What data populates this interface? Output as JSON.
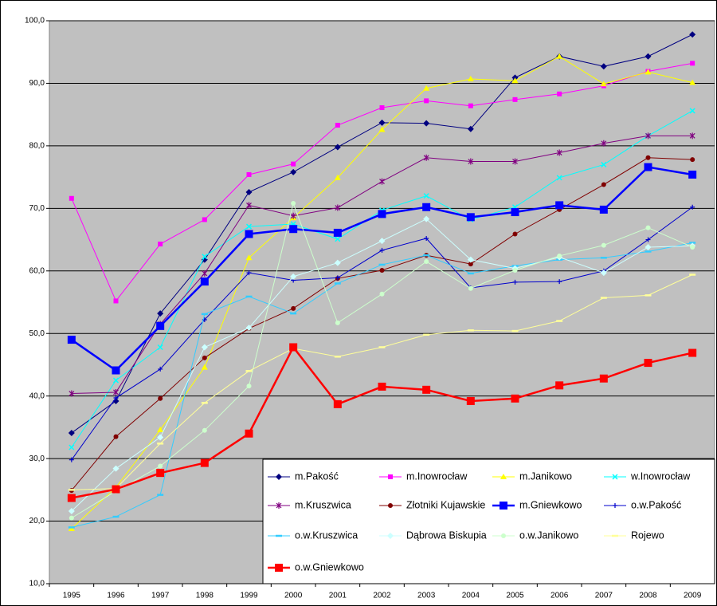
{
  "chart_data": {
    "type": "line",
    "categories": [
      "1995",
      "1996",
      "1997",
      "1998",
      "1999",
      "2000",
      "2001",
      "2002",
      "2003",
      "2004",
      "2005",
      "2006",
      "2007",
      "2008",
      "2009"
    ],
    "ylim": [
      10,
      100
    ],
    "yticks": [
      {
        "value": 10,
        "label": "10,0"
      },
      {
        "value": 20,
        "label": "20,0"
      },
      {
        "value": 30,
        "label": "30,0"
      },
      {
        "value": 40,
        "label": "40,0"
      },
      {
        "value": 50,
        "label": "50,0"
      },
      {
        "value": 60,
        "label": "60,0"
      },
      {
        "value": 70,
        "label": "70,0"
      },
      {
        "value": 80,
        "label": "80,0"
      },
      {
        "value": 90,
        "label": "90,0"
      },
      {
        "value": 100,
        "label": "100,0"
      }
    ],
    "grid": true,
    "legend": "bottom-right",
    "series": [
      {
        "name": "m.Pakość",
        "color": "#000080",
        "marker": "diamond",
        "line_width": 1,
        "values": [
          34.1,
          39.2,
          53.2,
          61.8,
          72.6,
          75.8,
          79.8,
          83.7,
          83.6,
          82.7,
          90.9,
          94.3,
          92.7,
          94.3,
          97.8
        ]
      },
      {
        "name": "m.Inowrocław",
        "color": "#FF00FF",
        "marker": "square",
        "line_width": 1,
        "values": [
          71.6,
          55.2,
          64.3,
          68.2,
          75.4,
          77.1,
          83.3,
          86.1,
          87.2,
          86.4,
          87.4,
          88.3,
          89.6,
          91.9,
          93.2
        ]
      },
      {
        "name": "m.Janikowo",
        "color": "#FFFF00",
        "marker": "triangle",
        "line_width": 1,
        "values": [
          18.8,
          25.4,
          34.6,
          44.6,
          62.1,
          68.5,
          74.9,
          82.6,
          89.2,
          90.7,
          90.4,
          94.3,
          89.9,
          91.8,
          90.1
        ]
      },
      {
        "name": "w.Inowrocław",
        "color": "#00FFFF",
        "marker": "x",
        "line_width": 1,
        "values": [
          31.8,
          42.5,
          47.8,
          62.3,
          67.1,
          67.5,
          65.1,
          69.7,
          72.0,
          68.2,
          70.2,
          74.9,
          77.0,
          81.6,
          85.6
        ]
      },
      {
        "name": "m.Kruszwica",
        "color": "#800080",
        "marker": "star",
        "line_width": 1,
        "values": [
          40.4,
          40.6,
          51.5,
          59.6,
          70.5,
          68.8,
          70.1,
          74.3,
          78.1,
          77.5,
          77.5,
          78.9,
          80.4,
          81.6,
          81.6
        ]
      },
      {
        "name": "Złotniki Kujawskie",
        "color": "#800000",
        "marker": "circle",
        "line_width": 1,
        "values": [
          24.9,
          33.5,
          39.6,
          46.1,
          50.8,
          54.0,
          58.8,
          60.1,
          62.5,
          61.1,
          65.9,
          69.8,
          73.8,
          78.1,
          77.8
        ]
      },
      {
        "name": "m.Gniewkowo",
        "color": "#0000FF",
        "marker": "bigsquare",
        "line_width": 2.5,
        "values": [
          49.0,
          44.1,
          51.2,
          58.3,
          65.9,
          66.7,
          66.1,
          69.1,
          70.2,
          68.6,
          69.4,
          70.5,
          69.8,
          76.6,
          75.4
        ]
      },
      {
        "name": "o.w.Pakość",
        "color": "#0000CC",
        "marker": "plus",
        "line_width": 1,
        "values": [
          29.8,
          39.7,
          44.3,
          52.2,
          59.7,
          58.5,
          58.9,
          63.3,
          65.2,
          57.3,
          58.2,
          58.3,
          60.0,
          65.0,
          70.2
        ]
      },
      {
        "name": "o.w.Kruszwica",
        "color": "#33CCFF",
        "marker": "dash",
        "line_width": 1,
        "values": [
          19.0,
          20.7,
          24.2,
          53.1,
          55.9,
          53.2,
          58.0,
          61.0,
          62.5,
          59.6,
          60.8,
          61.8,
          62.1,
          63.1,
          64.5
        ]
      },
      {
        "name": "Dąbrowa Biskupia",
        "color": "#CCFFFF",
        "marker": "diamond",
        "line_width": 1,
        "values": [
          21.6,
          28.4,
          33.4,
          47.8,
          50.9,
          59.1,
          61.3,
          64.8,
          68.3,
          61.8,
          60.4,
          62.2,
          59.7,
          63.8,
          64.0
        ]
      },
      {
        "name": "o.w.Janikowo",
        "color": "#CCFFCC",
        "marker": "circle",
        "line_width": 1,
        "values": [
          20.5,
          24.8,
          28.8,
          34.5,
          41.6,
          70.8,
          51.7,
          56.3,
          61.5,
          57.2,
          60.1,
          62.4,
          64.1,
          66.9,
          63.8
        ]
      },
      {
        "name": "Rojewo",
        "color": "#FFFF99",
        "marker": "dash",
        "line_width": 1,
        "values": [
          25.0,
          25.2,
          32.4,
          38.9,
          44.0,
          47.6,
          46.3,
          47.8,
          49.8,
          50.5,
          50.4,
          52.0,
          55.7,
          56.1,
          59.4
        ]
      },
      {
        "name": "o.w.Gniewkowo",
        "color": "#FF0000",
        "marker": "bigsquare",
        "line_width": 2.5,
        "values": [
          23.7,
          25.1,
          27.7,
          29.3,
          34.0,
          47.8,
          38.7,
          41.5,
          41.0,
          39.2,
          39.6,
          41.7,
          42.8,
          45.3,
          46.9
        ]
      }
    ]
  }
}
